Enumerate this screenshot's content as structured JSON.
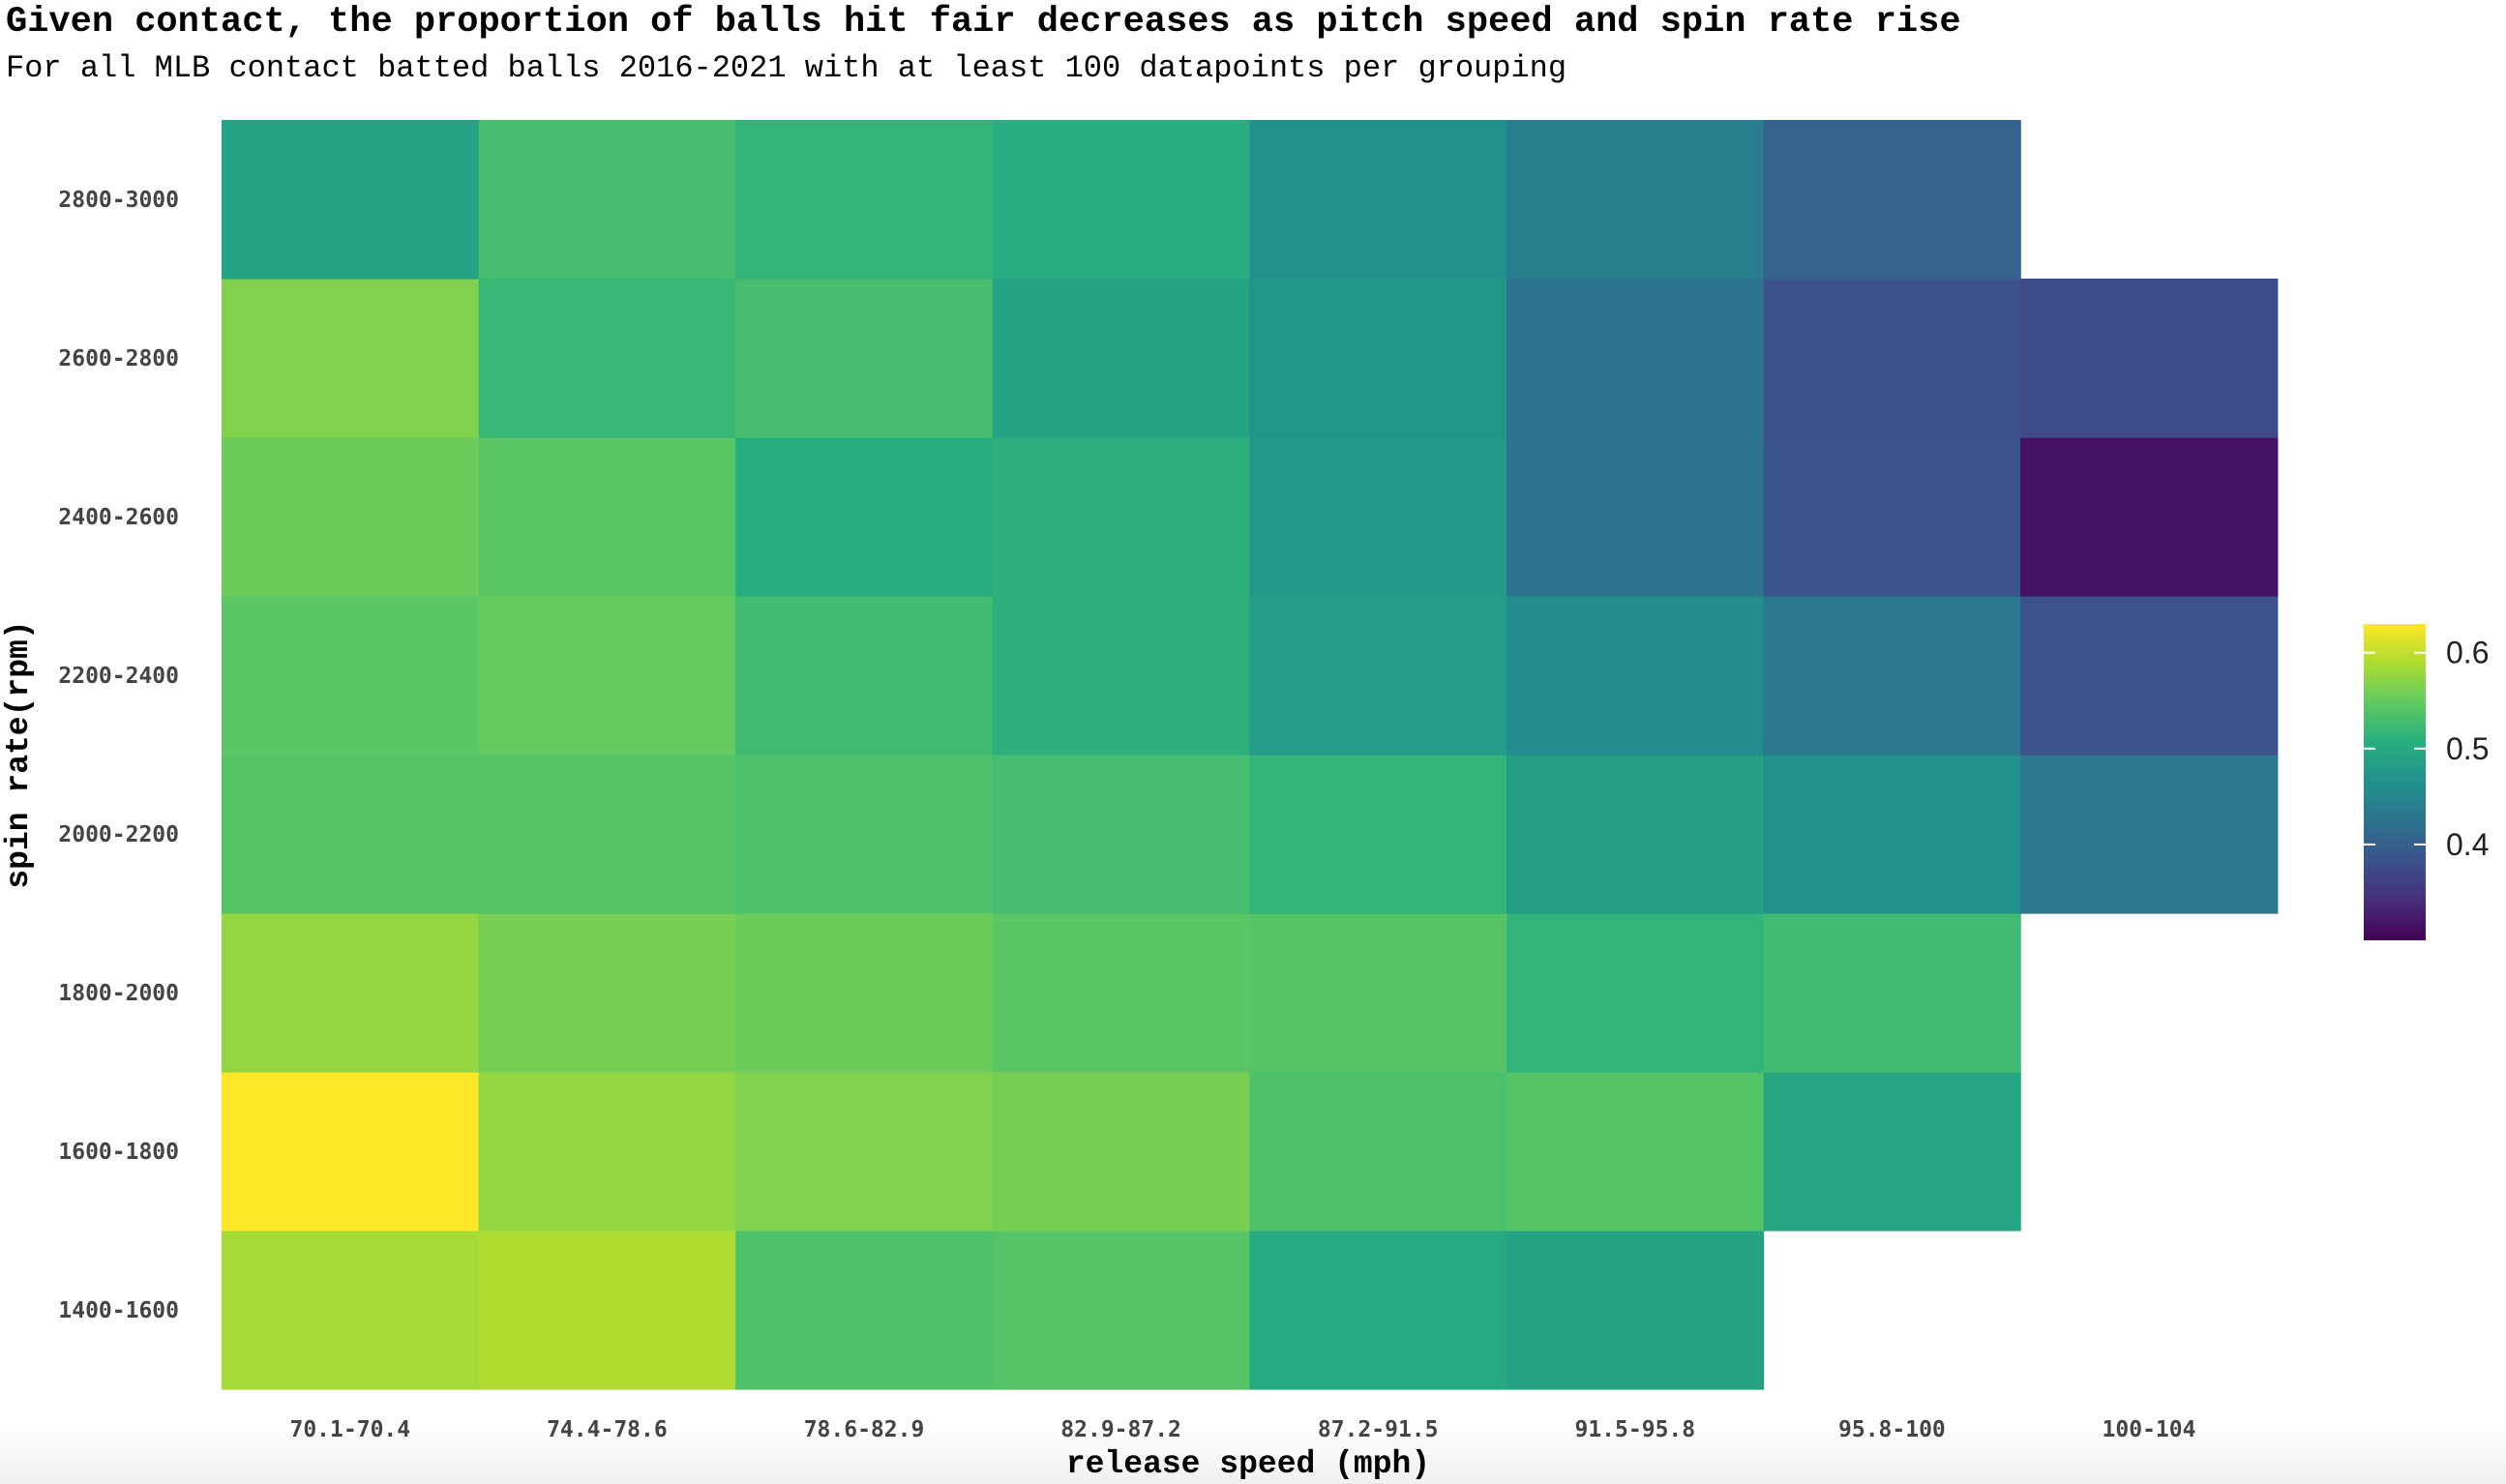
{
  "title": "Given contact, the proportion of balls hit fair decreases as pitch speed and spin rate rise",
  "subtitle": "For all MLB contact batted balls 2016-2021 with at least 100 datapoints per grouping",
  "chart_data": {
    "type": "heatmap",
    "title": "Given contact, the proportion of balls hit fair decreases as pitch speed and spin rate rise",
    "subtitle": "For all MLB contact batted balls 2016-2021 with at least 100 datapoints per grouping",
    "xlabel": "release speed (mph)",
    "ylabel": "spin rate(rpm)",
    "x_categories": [
      "70.1-70.4",
      "74.4-78.6",
      "78.6-82.9",
      "82.9-87.2",
      "87.2-91.5",
      "91.5-95.8",
      "95.8-100",
      "100-104"
    ],
    "y_categories": [
      "1400-1600",
      "1600-1800",
      "1800-2000",
      "2000-2200",
      "2200-2400",
      "2400-2600",
      "2600-2800",
      "2800-3000"
    ],
    "values": [
      [
        0.585,
        0.59,
        0.535,
        0.54,
        0.5,
        0.49,
        null,
        null
      ],
      [
        0.63,
        0.575,
        0.565,
        0.56,
        0.535,
        0.54,
        0.495,
        null
      ],
      [
        0.575,
        0.56,
        0.555,
        0.545,
        0.54,
        0.515,
        0.525,
        null
      ],
      [
        0.54,
        0.54,
        0.535,
        0.53,
        0.515,
        0.485,
        0.465,
        0.43
      ],
      [
        0.545,
        0.55,
        0.525,
        0.51,
        0.48,
        0.46,
        0.43,
        0.385
      ],
      [
        0.555,
        0.545,
        0.505,
        0.51,
        0.475,
        0.425,
        0.385,
        0.315
      ],
      [
        0.565,
        0.52,
        0.53,
        0.49,
        0.47,
        0.425,
        0.38,
        0.375
      ],
      [
        0.49,
        0.53,
        0.515,
        0.505,
        0.465,
        0.44,
        0.405,
        null
      ]
    ],
    "legend": {
      "ticks": [
        0.6,
        0.5,
        0.4
      ],
      "tick_labels": [
        "0.6",
        "0.5",
        "0.4"
      ],
      "range": [
        0.3,
        0.63
      ],
      "placement": "right",
      "colorscale": "viridis"
    },
    "grid": false
  }
}
